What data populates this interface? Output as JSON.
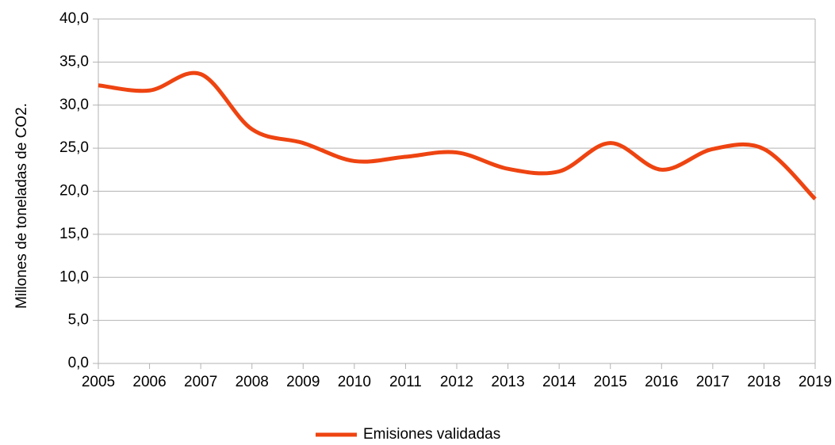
{
  "chart_data": {
    "type": "line",
    "title": "",
    "xlabel": "",
    "ylabel": "Millones de toneladas de CO2.",
    "x": [
      2005,
      2006,
      2007,
      2008,
      2009,
      2010,
      2011,
      2012,
      2013,
      2014,
      2015,
      2016,
      2017,
      2018,
      2019
    ],
    "x_tick_labels": [
      "2005",
      "2006",
      "2007",
      "2008",
      "2009",
      "2010",
      "2011",
      "2012",
      "2013",
      "2014",
      "2015",
      "2016",
      "2017",
      "2018",
      "2019"
    ],
    "ylim": [
      0,
      40
    ],
    "y_ticks": [
      0,
      5,
      10,
      15,
      20,
      25,
      30,
      35,
      40
    ],
    "y_tick_labels": [
      "0,0",
      "5,0",
      "10,0",
      "15,0",
      "20,0",
      "25,0",
      "30,0",
      "35,0",
      "40,0"
    ],
    "grid": "horizontal",
    "legend_position": "bottom-center",
    "series": [
      {
        "name": "Emisiones validadas",
        "color": "#ee4411",
        "values": [
          32.3,
          31.7,
          33.6,
          27.2,
          25.6,
          23.5,
          24.0,
          24.5,
          22.6,
          22.3,
          25.6,
          22.5,
          24.9,
          24.9,
          19.1
        ]
      }
    ]
  }
}
